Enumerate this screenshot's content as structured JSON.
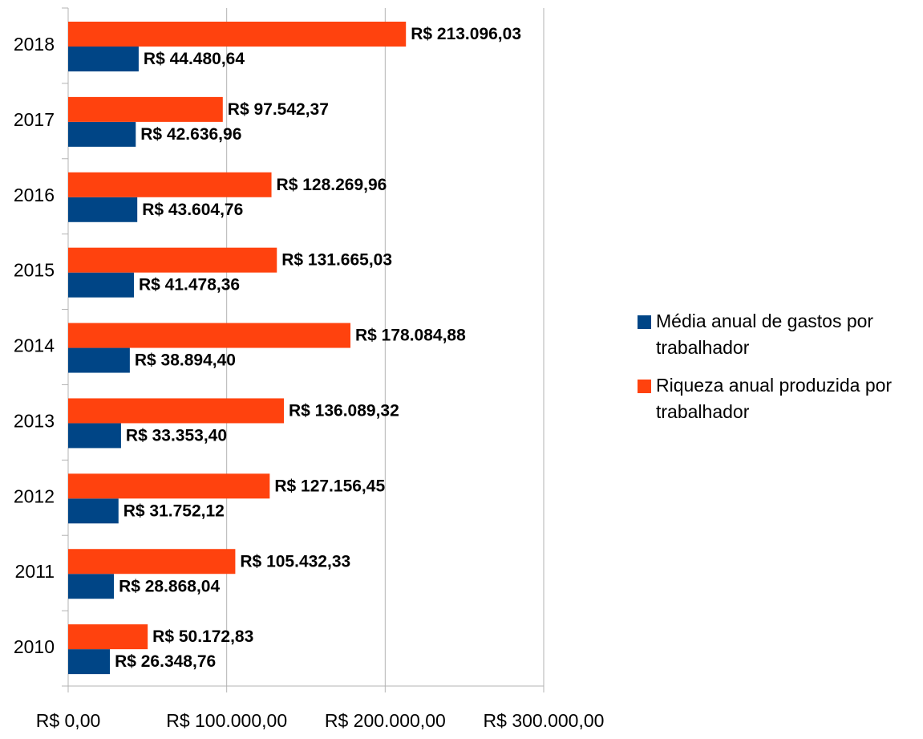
{
  "chart_data": {
    "type": "bar",
    "orientation": "horizontal",
    "categories": [
      "2010",
      "2011",
      "2012",
      "2013",
      "2014",
      "2015",
      "2016",
      "2017",
      "2018"
    ],
    "series": [
      {
        "name": "Média anual de gastos por trabalhador",
        "color": "#004586",
        "values": [
          26348.76,
          28868.04,
          31752.12,
          33353.4,
          38894.4,
          41478.36,
          43604.76,
          42636.96,
          44480.64
        ],
        "value_labels": [
          "R$ 26.348,76",
          "R$ 28.868,04",
          "R$ 31.752,12",
          "R$ 33.353,40",
          "R$ 38.894,40",
          "R$ 41.478,36",
          "R$ 43.604,76",
          "R$ 42.636,96",
          "R$ 44.480,64"
        ]
      },
      {
        "name": "Riqueza anual produzida por trabalhador",
        "color": "#ff420e",
        "values": [
          50172.83,
          105432.33,
          127156.45,
          136089.32,
          178084.88,
          131665.03,
          128269.96,
          97542.37,
          213096.03
        ],
        "value_labels": [
          "R$ 50.172,83",
          "R$ 105.432,33",
          "R$ 127.156,45",
          "R$ 136.089,32",
          "R$ 178.084,88",
          "R$ 131.665,03",
          "R$ 128.269,96",
          "R$ 97.542,37",
          "R$ 213.096,03"
        ]
      }
    ],
    "xlim": [
      0,
      300000
    ],
    "xticks": [
      {
        "value": 0,
        "label": "R$ 0,00"
      },
      {
        "value": 100000,
        "label": "R$ 100.000,00"
      },
      {
        "value": 200000,
        "label": "R$ 200.000,00"
      },
      {
        "value": 300000,
        "label": "R$ 300.000,00"
      }
    ],
    "grid": true,
    "legend": "right"
  }
}
